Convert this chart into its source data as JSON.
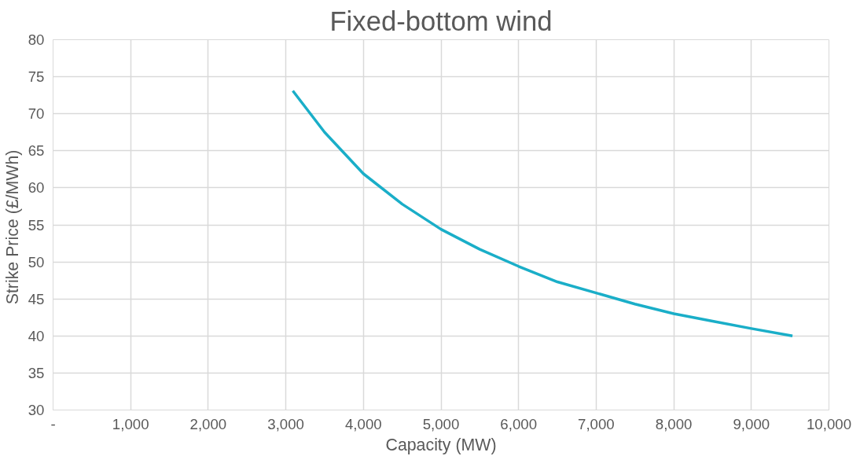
{
  "chart_data": {
    "type": "line",
    "title": "Fixed-bottom wind",
    "xlabel": "Capacity (MW)",
    "ylabel": "Strike Price  (£/MWh)",
    "x": [
      3090,
      3500,
      4000,
      4500,
      5000,
      5500,
      6000,
      6500,
      7000,
      7500,
      8000,
      8500,
      9000,
      9530
    ],
    "series": [
      {
        "color": "#1aaec8",
        "values": [
          73.1,
          67.5,
          61.9,
          57.8,
          54.4,
          51.7,
          49.4,
          47.3,
          45.8,
          44.3,
          43.0,
          42.0,
          41.0,
          40.0
        ]
      }
    ],
    "xlim": [
      0,
      10000
    ],
    "xticks": [
      {
        "value": 0,
        "label": "-"
      },
      {
        "value": 1000,
        "label": "1,000"
      },
      {
        "value": 2000,
        "label": "2,000"
      },
      {
        "value": 3000,
        "label": "3,000"
      },
      {
        "value": 4000,
        "label": "4,000"
      },
      {
        "value": 5000,
        "label": "5,000"
      },
      {
        "value": 6000,
        "label": "6,000"
      },
      {
        "value": 7000,
        "label": "7,000"
      },
      {
        "value": 8000,
        "label": "8,000"
      },
      {
        "value": 9000,
        "label": "9,000"
      },
      {
        "value": 10000,
        "label": "10,000"
      }
    ],
    "ylim": [
      30,
      80
    ],
    "yticks": [
      30,
      35,
      40,
      45,
      50,
      55,
      60,
      65,
      70,
      75,
      80
    ],
    "grid": true,
    "marker": "none",
    "line_style": "solid"
  }
}
